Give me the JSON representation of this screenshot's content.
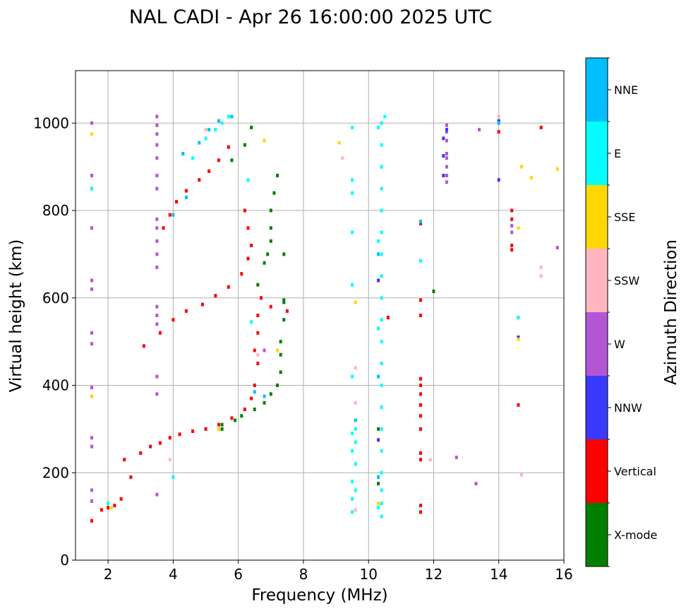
{
  "chart_data": {
    "type": "scatter",
    "title": "NAL CADI - Apr 26 16:00:00 2025 UTC",
    "xlabel": "Frequency (MHz)",
    "ylabel": "Virtual height (km)",
    "xlim": [
      1,
      16
    ],
    "ylim": [
      0,
      1120
    ],
    "xticks": [
      2,
      4,
      6,
      8,
      10,
      12,
      14,
      16
    ],
    "yticks": [
      0,
      200,
      400,
      600,
      800,
      1000
    ],
    "grid": true,
    "colorbar": {
      "label": "Azimuth Direction",
      "categories": [
        {
          "name": "X-mode",
          "color": "#008000"
        },
        {
          "name": "Vertical",
          "color": "#ff0000"
        },
        {
          "name": "NNW",
          "color": "#3a3aff"
        },
        {
          "name": "W",
          "color": "#b455d6"
        },
        {
          "name": "SSW",
          "color": "#ffb6c1"
        },
        {
          "name": "SSE",
          "color": "#ffd700"
        },
        {
          "name": "E",
          "color": "#00ffff"
        },
        {
          "name": "NNE",
          "color": "#00bfff"
        }
      ]
    },
    "series": [
      {
        "name": "Vertical",
        "points": [
          [
            1.5,
            90
          ],
          [
            1.8,
            115
          ],
          [
            2.0,
            120
          ],
          [
            2.2,
            125
          ],
          [
            2.4,
            140
          ],
          [
            2.5,
            230
          ],
          [
            2.7,
            190
          ],
          [
            3.0,
            245
          ],
          [
            3.3,
            260
          ],
          [
            3.6,
            268
          ],
          [
            3.9,
            280
          ],
          [
            4.2,
            288
          ],
          [
            4.6,
            295
          ],
          [
            5.0,
            300
          ],
          [
            5.4,
            310
          ],
          [
            5.8,
            325
          ],
          [
            6.2,
            345
          ],
          [
            6.4,
            370
          ],
          [
            6.5,
            400
          ],
          [
            6.6,
            450
          ],
          [
            6.5,
            480
          ],
          [
            6.6,
            520
          ],
          [
            6.6,
            560
          ],
          [
            6.7,
            600
          ],
          [
            7.0,
            580
          ],
          [
            7.5,
            570
          ],
          [
            3.1,
            490
          ],
          [
            3.6,
            520
          ],
          [
            4.0,
            550
          ],
          [
            4.4,
            570
          ],
          [
            4.9,
            585
          ],
          [
            5.3,
            605
          ],
          [
            5.7,
            625
          ],
          [
            6.1,
            655
          ],
          [
            6.3,
            690
          ],
          [
            6.4,
            720
          ],
          [
            6.3,
            760
          ],
          [
            6.2,
            800
          ],
          [
            3.7,
            760
          ],
          [
            3.9,
            790
          ],
          [
            4.1,
            820
          ],
          [
            4.4,
            845
          ],
          [
            4.8,
            870
          ],
          [
            5.1,
            890
          ],
          [
            5.4,
            915
          ],
          [
            5.7,
            945
          ],
          [
            11.6,
            110
          ],
          [
            11.6,
            125
          ],
          [
            11.6,
            230
          ],
          [
            11.6,
            245
          ],
          [
            11.6,
            300
          ],
          [
            11.6,
            330
          ],
          [
            11.6,
            355
          ],
          [
            11.6,
            380
          ],
          [
            11.6,
            400
          ],
          [
            11.6,
            415
          ],
          [
            11.6,
            560
          ],
          [
            11.6,
            595
          ],
          [
            11.6,
            770
          ],
          [
            14.4,
            710
          ],
          [
            14.4,
            720
          ],
          [
            14.4,
            780
          ],
          [
            14.4,
            800
          ],
          [
            14.6,
            555
          ],
          [
            14.6,
            355
          ],
          [
            14.0,
            980
          ],
          [
            15.3,
            990
          ],
          [
            10.6,
            555
          ]
        ]
      },
      {
        "name": "X-mode",
        "points": [
          [
            5.5,
            310
          ],
          [
            5.9,
            320
          ],
          [
            6.1,
            330
          ],
          [
            6.5,
            345
          ],
          [
            6.8,
            360
          ],
          [
            7.0,
            380
          ],
          [
            7.2,
            400
          ],
          [
            7.3,
            430
          ],
          [
            7.3,
            470
          ],
          [
            7.3,
            500
          ],
          [
            7.4,
            550
          ],
          [
            7.4,
            590
          ],
          [
            6.6,
            630
          ],
          [
            6.8,
            680
          ],
          [
            6.9,
            700
          ],
          [
            7.0,
            730
          ],
          [
            7.0,
            760
          ],
          [
            7.0,
            800
          ],
          [
            7.1,
            840
          ],
          [
            7.2,
            880
          ],
          [
            5.8,
            915
          ],
          [
            6.2,
            950
          ],
          [
            6.4,
            990
          ],
          [
            7.4,
            595
          ],
          [
            7.4,
            700
          ],
          [
            5.5,
            300
          ],
          [
            12.0,
            615
          ],
          [
            10.3,
            300
          ],
          [
            10.3,
            175
          ]
        ]
      },
      {
        "name": "W",
        "points": [
          [
            1.5,
            135
          ],
          [
            1.5,
            160
          ],
          [
            1.5,
            260
          ],
          [
            1.5,
            280
          ],
          [
            1.5,
            375
          ],
          [
            1.5,
            395
          ],
          [
            1.5,
            495
          ],
          [
            1.5,
            520
          ],
          [
            1.5,
            620
          ],
          [
            1.5,
            640
          ],
          [
            1.5,
            760
          ],
          [
            1.5,
            850
          ],
          [
            1.5,
            880
          ],
          [
            1.5,
            1000
          ],
          [
            3.5,
            150
          ],
          [
            3.5,
            380
          ],
          [
            3.5,
            420
          ],
          [
            3.5,
            540
          ],
          [
            3.5,
            560
          ],
          [
            3.5,
            580
          ],
          [
            3.5,
            670
          ],
          [
            3.5,
            700
          ],
          [
            3.5,
            730
          ],
          [
            3.5,
            760
          ],
          [
            3.5,
            780
          ],
          [
            3.5,
            850
          ],
          [
            3.5,
            880
          ],
          [
            3.5,
            920
          ],
          [
            3.5,
            950
          ],
          [
            3.5,
            975
          ],
          [
            3.5,
            995
          ],
          [
            3.5,
            1015
          ],
          [
            12.4,
            865
          ],
          [
            12.4,
            880
          ],
          [
            12.4,
            900
          ],
          [
            12.4,
            920
          ],
          [
            12.4,
            930
          ],
          [
            12.4,
            960
          ],
          [
            12.4,
            980
          ],
          [
            12.4,
            995
          ],
          [
            12.7,
            235
          ],
          [
            13.3,
            175
          ],
          [
            13.4,
            985
          ],
          [
            14.4,
            750
          ],
          [
            14.4,
            765
          ],
          [
            15.8,
            715
          ],
          [
            6.8,
            480
          ]
        ]
      },
      {
        "name": "NNW",
        "points": [
          [
            12.3,
            880
          ],
          [
            12.3,
            925
          ],
          [
            12.3,
            965
          ],
          [
            12.4,
            985
          ],
          [
            14.0,
            870
          ],
          [
            14.0,
            1005
          ],
          [
            10.3,
            275
          ],
          [
            10.3,
            640
          ],
          [
            11.6,
            775
          ],
          [
            14.6,
            510
          ]
        ]
      },
      {
        "name": "E",
        "points": [
          [
            1.5,
            850
          ],
          [
            2.0,
            130
          ],
          [
            4.0,
            190
          ],
          [
            4.3,
            930
          ],
          [
            4.6,
            920
          ],
          [
            5.0,
            965
          ],
          [
            5.3,
            985
          ],
          [
            5.5,
            1000
          ],
          [
            5.7,
            1015
          ],
          [
            6.3,
            870
          ],
          [
            6.4,
            545
          ],
          [
            9.5,
            110
          ],
          [
            9.5,
            140
          ],
          [
            9.6,
            160
          ],
          [
            9.5,
            180
          ],
          [
            9.6,
            220
          ],
          [
            9.5,
            250
          ],
          [
            9.6,
            270
          ],
          [
            9.5,
            290
          ],
          [
            9.6,
            300
          ],
          [
            9.5,
            420
          ],
          [
            9.5,
            630
          ],
          [
            9.5,
            750
          ],
          [
            9.5,
            840
          ],
          [
            9.5,
            870
          ],
          [
            9.5,
            990
          ],
          [
            10.4,
            100
          ],
          [
            10.4,
            130
          ],
          [
            10.4,
            160
          ],
          [
            10.4,
            200
          ],
          [
            10.4,
            250
          ],
          [
            10.4,
            300
          ],
          [
            10.4,
            350
          ],
          [
            10.4,
            400
          ],
          [
            10.4,
            450
          ],
          [
            10.4,
            500
          ],
          [
            10.4,
            550
          ],
          [
            10.4,
            600
          ],
          [
            10.4,
            650
          ],
          [
            10.4,
            700
          ],
          [
            10.4,
            750
          ],
          [
            10.4,
            800
          ],
          [
            10.4,
            850
          ],
          [
            10.4,
            900
          ],
          [
            10.4,
            950
          ],
          [
            10.4,
            1000
          ],
          [
            10.5,
            1015
          ],
          [
            10.3,
            120
          ],
          [
            10.3,
            530
          ],
          [
            10.3,
            730
          ],
          [
            10.3,
            990
          ],
          [
            11.6,
            685
          ],
          [
            14.6,
            555
          ]
        ]
      },
      {
        "name": "NNE",
        "points": [
          [
            4.3,
            930
          ],
          [
            4.8,
            955
          ],
          [
            5.1,
            985
          ],
          [
            5.4,
            1005
          ],
          [
            5.8,
            1015
          ],
          [
            6.5,
            385
          ],
          [
            6.8,
            375
          ],
          [
            4.0,
            790
          ],
          [
            4.4,
            830
          ],
          [
            9.6,
            320
          ],
          [
            10.3,
            190
          ],
          [
            10.3,
            420
          ],
          [
            10.3,
            700
          ],
          [
            11.6,
            775
          ],
          [
            14.0,
            1000
          ]
        ]
      },
      {
        "name": "SSW",
        "points": [
          [
            3.9,
            230
          ],
          [
            5.0,
            985
          ],
          [
            9.6,
            115
          ],
          [
            9.6,
            360
          ],
          [
            9.6,
            440
          ],
          [
            11.9,
            230
          ],
          [
            14.0,
            1015
          ],
          [
            14.7,
            195
          ],
          [
            15.3,
            650
          ],
          [
            15.3,
            670
          ],
          [
            9.2,
            920
          ],
          [
            6.6,
            470
          ]
        ]
      },
      {
        "name": "SSE",
        "points": [
          [
            1.5,
            375
          ],
          [
            1.5,
            975
          ],
          [
            2.1,
            120
          ],
          [
            6.8,
            960
          ],
          [
            7.2,
            480
          ],
          [
            9.1,
            955
          ],
          [
            9.6,
            590
          ],
          [
            10.3,
            130
          ],
          [
            14.6,
            505
          ],
          [
            14.6,
            760
          ],
          [
            14.7,
            900
          ],
          [
            15.0,
            875
          ],
          [
            15.8,
            895
          ],
          [
            5.4,
            300
          ]
        ]
      }
    ]
  }
}
